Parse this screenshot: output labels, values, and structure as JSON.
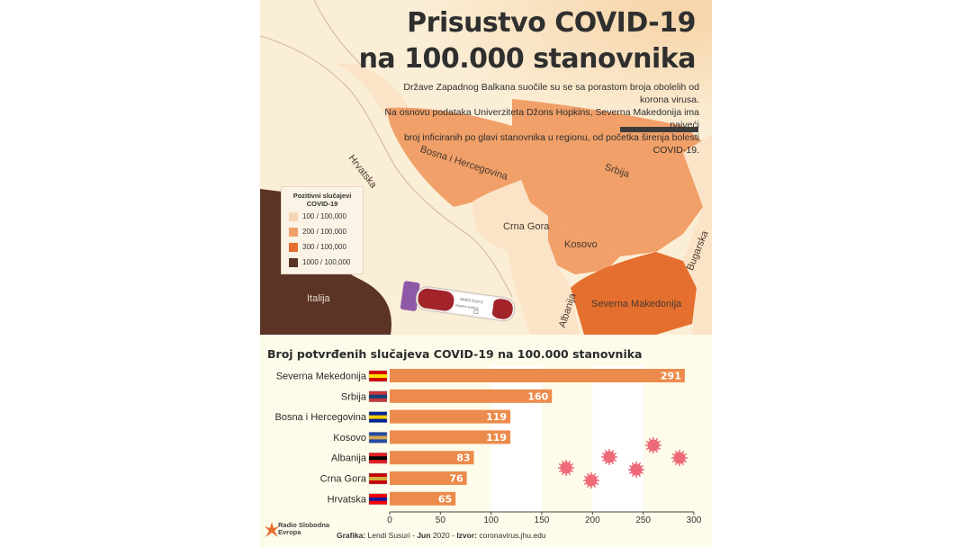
{
  "title": {
    "line1": "Prisustvo COVID-19",
    "line2": "na 100.000 stanovnika"
  },
  "subtitle": {
    "line1": "Države Zapadnog Balkana suočile su se sa porastom broja obolelih od korona virusa.",
    "line2": "Na osnovu podataka Univerziteta Džons Hopkins, Severna Makedonija ima najveći",
    "line3": "broj inficiranih po glavi stanovnika u regionu, od početka širenja bolesti COVID-19."
  },
  "legend": {
    "title_line1": "Pozitivni slučajevi",
    "title_line2": "COVID-19",
    "items": [
      {
        "label": "100 / 100,000",
        "color": "#f7d6b8"
      },
      {
        "label": "200 / 100,000",
        "color": "#f0a068"
      },
      {
        "label": "300 / 100,000",
        "color": "#e46f2e"
      },
      {
        "label": "1000 / 100,000",
        "color": "#5b3426"
      }
    ]
  },
  "map_labels": {
    "hrvatska": "Hrvatska",
    "bih": "Bosna i Hercegovina",
    "srbija": "Srbija",
    "crna_gora": "Crna Gora",
    "kosovo": "Kosovo",
    "albanija": "Albanija",
    "s_makedonija": "Severna Makedonija",
    "bugarska": "Bugarska",
    "italija": "Italija"
  },
  "tube_label": {
    "line1": "SARS CoV-2",
    "line2": "negative  positive"
  },
  "chart_data": {
    "type": "bar",
    "orientation": "horizontal",
    "title": "Broj potvrđenih slučajeva COVID-19 na 100.000 stanovnika",
    "categories": [
      "Severna Mekedonija",
      "Srbija",
      "Bosna i Hercegovina",
      "Kosovo",
      "Albanija",
      "Crna Gora",
      "Hrvatska"
    ],
    "values": [
      291,
      160,
      119,
      119,
      83,
      76,
      65
    ],
    "xlim": [
      0,
      300
    ],
    "xticks": [
      "0",
      "50",
      "100",
      "150",
      "200",
      "250",
      "300"
    ],
    "bar_color": "#ec8b4c",
    "grid": false
  },
  "footer": {
    "label_grafika": "Grafika:",
    "author": "Lendi Susuri",
    "sep1": " - ",
    "label_jun": "Jun",
    "year": "2020",
    "sep2": " - ",
    "label_izvor": "Izvor:",
    "source": "coronavirus.jhu.edu"
  },
  "logo": {
    "line1": "Radio Slobodna",
    "line2": "Evropa"
  }
}
